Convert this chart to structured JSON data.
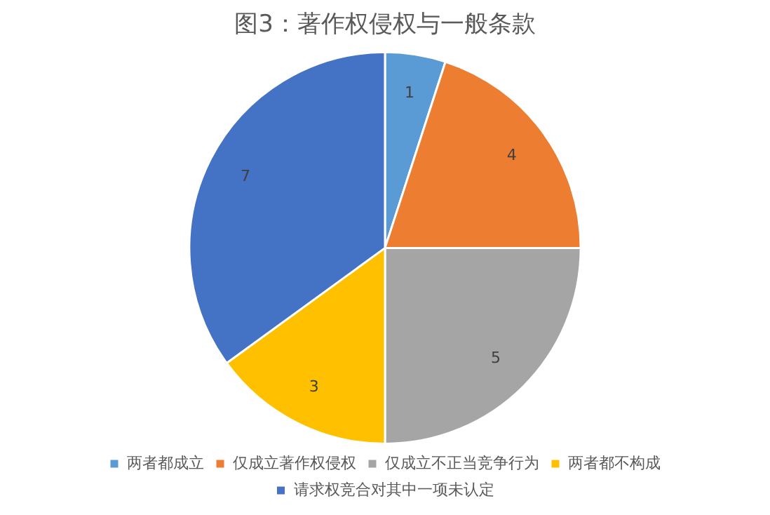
{
  "chart_data": {
    "type": "pie",
    "title": "图3：著作权侵权与一般条款",
    "categories": [
      "两者都成立",
      "仅成立著作权侵权",
      "仅成立不正当竞争行为",
      "两者都不构成",
      "请求权竞合对其中一项未认定"
    ],
    "values": [
      1,
      4,
      5,
      3,
      7
    ],
    "colors": [
      "#5b9bd5",
      "#ed7d31",
      "#a5a5a5",
      "#ffc000",
      "#4472c4"
    ],
    "data_labels": true,
    "legend": "bottom"
  }
}
